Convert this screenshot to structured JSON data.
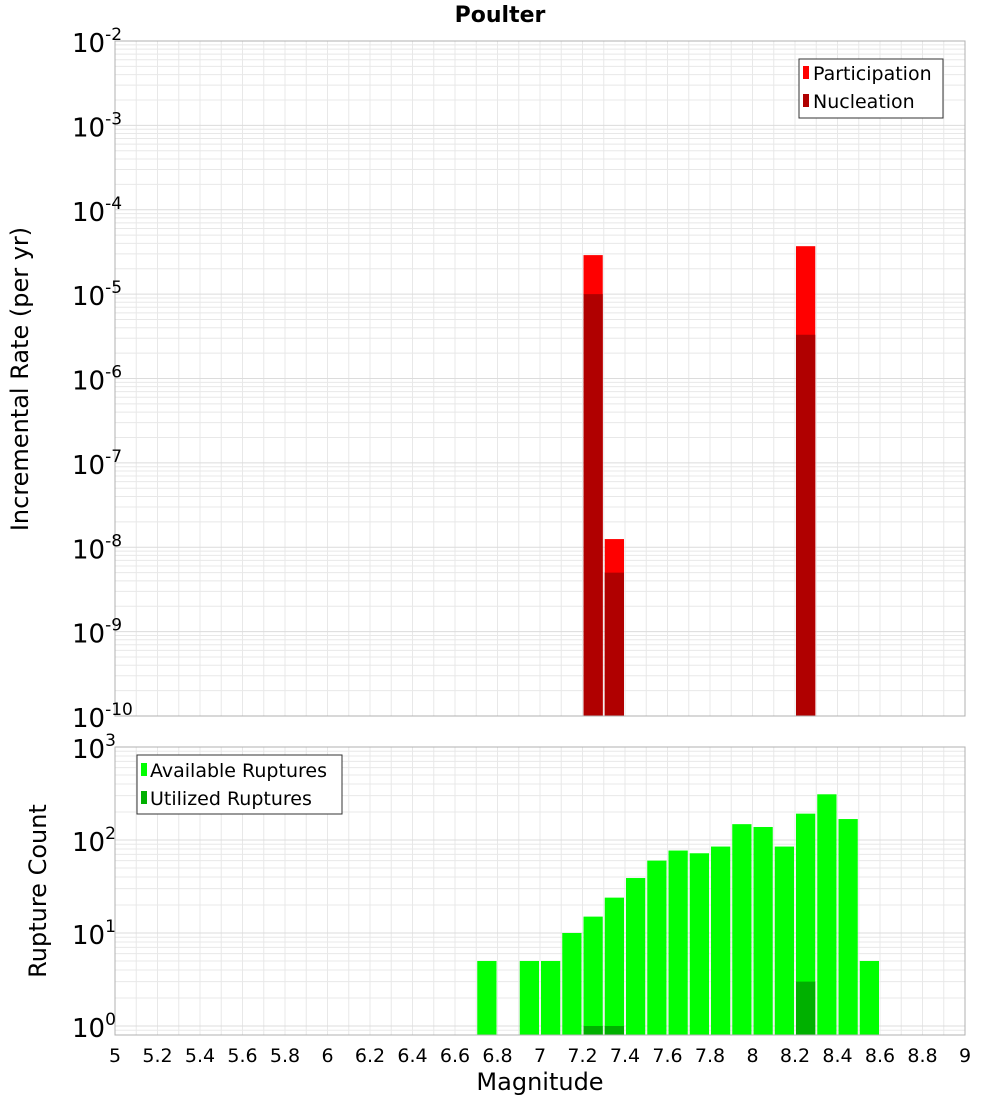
{
  "title": "Poulter",
  "xlabel": "Magnitude",
  "x_ticks": [
    "5",
    "5.2",
    "5.4",
    "5.6",
    "5.8",
    "6",
    "6.2",
    "6.4",
    "6.6",
    "6.8",
    "7",
    "7.2",
    "7.4",
    "7.6",
    "7.8",
    "8",
    "8.2",
    "8.4",
    "8.6",
    "8.8",
    "9"
  ],
  "colors": {
    "participation": "#ff0000",
    "nucleation": "#b00000",
    "available": "#00ff00",
    "utilized": "#00b000",
    "grid": "#e8e8e8",
    "frame": "#b0b0b0"
  },
  "chart_data": [
    {
      "type": "bar",
      "ylabel": "Incremental Rate (per yr)",
      "yscale": "log",
      "ylim": [
        1e-10,
        0.01
      ],
      "xlim": [
        5,
        9
      ],
      "bin_width": 0.1,
      "y_ticks": [
        {
          "base": "10",
          "exp": "-2"
        },
        {
          "base": "10",
          "exp": "-3"
        },
        {
          "base": "10",
          "exp": "-4"
        },
        {
          "base": "10",
          "exp": "-5"
        },
        {
          "base": "10",
          "exp": "-6"
        },
        {
          "base": "10",
          "exp": "-7"
        },
        {
          "base": "10",
          "exp": "-8"
        },
        {
          "base": "10",
          "exp": "-9"
        },
        {
          "base": "10",
          "exp": "-10"
        }
      ],
      "legend": {
        "position": "top-right",
        "entries": [
          "Participation",
          "Nucleation"
        ]
      },
      "series": [
        {
          "name": "Participation",
          "x": [
            7.25,
            7.35,
            8.25
          ],
          "values": [
            2.9e-05,
            1.25e-08,
            3.7e-05
          ]
        },
        {
          "name": "Nucleation",
          "x": [
            7.25,
            7.35,
            8.25
          ],
          "values": [
            1e-05,
            5e-09,
            3.3e-06
          ]
        }
      ]
    },
    {
      "type": "bar",
      "ylabel": "Rupture Count",
      "yscale": "log",
      "ylim": [
        0.8,
        1000
      ],
      "xlim": [
        5,
        9
      ],
      "bin_width": 0.1,
      "y_ticks": [
        {
          "base": "10",
          "exp": "3"
        },
        {
          "base": "10",
          "exp": "2"
        },
        {
          "base": "10",
          "exp": "1"
        },
        {
          "base": "10",
          "exp": "0"
        }
      ],
      "legend": {
        "position": "top-left",
        "entries": [
          "Available Ruptures",
          "Utilized Ruptures"
        ]
      },
      "series": [
        {
          "name": "Available Ruptures",
          "x": [
            6.75,
            6.95,
            7.05,
            7.15,
            7.25,
            7.35,
            7.45,
            7.55,
            7.65,
            7.75,
            7.85,
            7.95,
            8.05,
            8.15,
            8.25,
            8.35,
            8.45,
            8.55
          ],
          "values": [
            5,
            5,
            5,
            10,
            15,
            24,
            39,
            60,
            77,
            72,
            85,
            148,
            138,
            85,
            192,
            310,
            168,
            5
          ]
        },
        {
          "name": "Utilized Ruptures",
          "x": [
            7.25,
            7.35,
            8.25
          ],
          "values": [
            1,
            1,
            3
          ]
        }
      ]
    }
  ]
}
